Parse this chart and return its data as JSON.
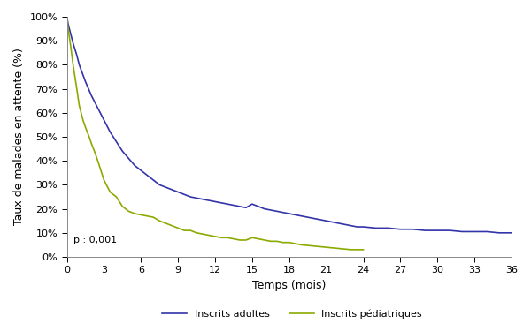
{
  "title": "",
  "xlabel": "Temps (mois)",
  "ylabel": "Taux de malades en attente (%)",
  "annotation": "p : 0,001",
  "xlim": [
    0,
    36
  ],
  "ylim": [
    0,
    100
  ],
  "xticks": [
    0,
    3,
    6,
    9,
    12,
    15,
    18,
    21,
    24,
    27,
    30,
    33,
    36
  ],
  "yticks": [
    0,
    10,
    20,
    30,
    40,
    50,
    60,
    70,
    80,
    90,
    100
  ],
  "adult_color": "#3333aa",
  "ped_color": "#8aaa00",
  "background_color": "#ffffff",
  "legend_adult": "Inscrits adultes",
  "legend_ped": "Inscrits pédiatriques",
  "adult_x": [
    0,
    0.1,
    0.3,
    0.5,
    0.8,
    1.0,
    1.5,
    2.0,
    2.5,
    3.0,
    3.5,
    4.0,
    4.5,
    5.0,
    5.5,
    6.0,
    6.5,
    7.0,
    7.5,
    8.0,
    8.5,
    9.0,
    9.5,
    10.0,
    10.5,
    11.0,
    11.5,
    12.0,
    12.5,
    13.0,
    13.5,
    14.0,
    14.5,
    15.0,
    15.5,
    16.0,
    16.5,
    17.0,
    17.5,
    18.0,
    18.5,
    19.0,
    19.5,
    20.0,
    20.5,
    21.0,
    21.5,
    22.0,
    22.5,
    23.0,
    23.5,
    24.0,
    25.0,
    26.0,
    27.0,
    28.0,
    29.0,
    30.0,
    31.0,
    32.0,
    33.0,
    34.0,
    35.0,
    36.0
  ],
  "adult_y": [
    100,
    97,
    93,
    89,
    84,
    80,
    73,
    67,
    62,
    57,
    52,
    48,
    44,
    41,
    38,
    36,
    34,
    32,
    30,
    29,
    28,
    27,
    26,
    25,
    24.5,
    24,
    23.5,
    23,
    22.5,
    22,
    21.5,
    21,
    20.5,
    22,
    21,
    20,
    19.5,
    19,
    18.5,
    18,
    17.5,
    17,
    16.5,
    16,
    15.5,
    15,
    14.5,
    14,
    13.5,
    13,
    12.5,
    12.5,
    12,
    12,
    11.5,
    11.5,
    11,
    11,
    11,
    10.5,
    10.5,
    10.5,
    10,
    10
  ],
  "ped_x": [
    0,
    0.1,
    0.3,
    0.5,
    0.8,
    1.0,
    1.3,
    1.5,
    1.8,
    2.0,
    2.3,
    2.5,
    3.0,
    3.5,
    4.0,
    4.5,
    5.0,
    5.5,
    6.0,
    6.5,
    7.0,
    7.5,
    8.0,
    8.5,
    9.0,
    9.5,
    10.0,
    10.5,
    11.0,
    11.5,
    12.0,
    12.5,
    13.0,
    13.5,
    14.0,
    14.5,
    15.0,
    15.5,
    16.0,
    16.5,
    17.0,
    17.5,
    18.0,
    19.0,
    20.0,
    21.0,
    22.0,
    23.0,
    24.0
  ],
  "ped_y": [
    100,
    95,
    88,
    80,
    70,
    63,
    57,
    54,
    50,
    47,
    43,
    40,
    32,
    27,
    25,
    21,
    19,
    18,
    17.5,
    17,
    16.5,
    15,
    14,
    13,
    12,
    11,
    11,
    10,
    9.5,
    9,
    8.5,
    8,
    8,
    7.5,
    7,
    7,
    8,
    7.5,
    7,
    6.5,
    6.5,
    6,
    6,
    5,
    4.5,
    4,
    3.5,
    3,
    3
  ]
}
